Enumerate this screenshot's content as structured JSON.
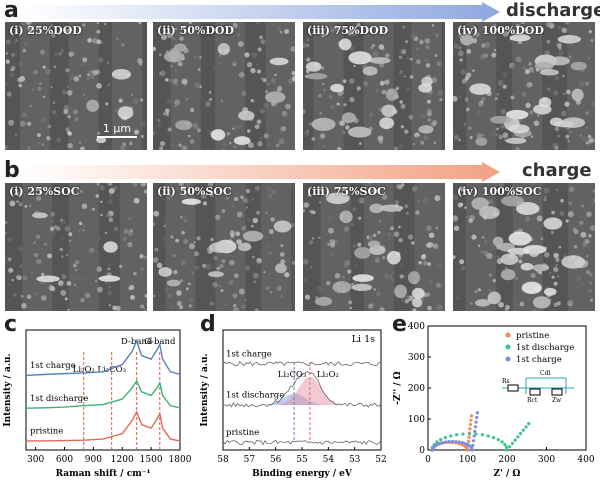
{
  "panel_a": {
    "letter": "a",
    "arrow_label": "discharge",
    "arrow_color": "#8fa7e0",
    "images": [
      {
        "label": "(i) 25%DOD"
      },
      {
        "label": "(ii) 50%DOD"
      },
      {
        "label": "(iii) 75%DOD"
      },
      {
        "label": "(iv) 100%DOD"
      }
    ],
    "scale_bar": "1 μm"
  },
  "panel_b": {
    "letter": "b",
    "arrow_label": "charge",
    "arrow_color": "#f2a183",
    "images": [
      {
        "label": "(i) 25%SOC"
      },
      {
        "label": "(ii) 50%SOC"
      },
      {
        "label": "(iii) 75%SOC"
      },
      {
        "label": "(iv) 100%SOC"
      }
    ]
  },
  "chart_data": [
    {
      "id": "c",
      "type": "line",
      "panel_letter": "c",
      "xlabel": "Raman shift / cm⁻¹",
      "ylabel": "Intensity / a.u.",
      "xlim": [
        200,
        1800
      ],
      "xticks": [
        300,
        600,
        900,
        1200,
        1500,
        1800
      ],
      "band_lines": [
        {
          "x": 800,
          "label": "Li₂O₂"
        },
        {
          "x": 1090,
          "label": "Li₂CO₃"
        },
        {
          "x": 1350,
          "label": "D-band"
        },
        {
          "x": 1590,
          "label": "G-band"
        }
      ],
      "series": [
        {
          "name": "1st charge",
          "color": "#5b7fc4",
          "offset": 2.0,
          "x": [
            200,
            400,
            600,
            800,
            1000,
            1200,
            1300,
            1350,
            1400,
            1500,
            1560,
            1590,
            1620,
            1700,
            1800
          ],
          "y": [
            0.05,
            0.08,
            0.1,
            0.12,
            0.15,
            0.35,
            0.7,
            1.0,
            0.6,
            0.5,
            0.75,
            0.9,
            0.5,
            0.15,
            0.08
          ]
        },
        {
          "name": "1st discharge",
          "color": "#3fb07a",
          "offset": 1.1,
          "x": [
            200,
            400,
            600,
            800,
            1000,
            1200,
            1300,
            1350,
            1400,
            1500,
            1560,
            1590,
            1620,
            1700,
            1800
          ],
          "y": [
            0.05,
            0.06,
            0.08,
            0.12,
            0.15,
            0.3,
            0.6,
            0.8,
            0.5,
            0.4,
            0.6,
            0.75,
            0.4,
            0.12,
            0.06
          ]
        },
        {
          "name": "pristine",
          "color": "#e06a5a",
          "offset": 0.2,
          "x": [
            200,
            400,
            600,
            800,
            1000,
            1200,
            1300,
            1350,
            1400,
            1500,
            1560,
            1590,
            1620,
            1700,
            1800
          ],
          "y": [
            0.05,
            0.05,
            0.06,
            0.07,
            0.1,
            0.25,
            0.6,
            0.85,
            0.5,
            0.4,
            0.65,
            0.8,
            0.4,
            0.1,
            0.05
          ]
        }
      ]
    },
    {
      "id": "d",
      "type": "line",
      "panel_letter": "d",
      "title": "Li 1s",
      "xlabel": "Binding energy / eV",
      "ylabel": "Intensity / a.u.",
      "xlim": [
        58,
        52
      ],
      "xticks": [
        58,
        57,
        56,
        55,
        54,
        53,
        52
      ],
      "ref_lines": [
        {
          "x": 55.3,
          "label": "Li₂CO₃",
          "color": "#5b7fc4"
        },
        {
          "x": 54.7,
          "label": "Li₂O₂",
          "color": "#e06a5a"
        }
      ],
      "traces": [
        {
          "name": "1st charge",
          "offset": 2.3
        },
        {
          "name": "1st discharge",
          "offset": 1.2
        },
        {
          "name": "pristine",
          "offset": 0.2
        }
      ],
      "fit_peaks": [
        {
          "center": 55.3,
          "height": 0.3,
          "color": "#6f8fd8"
        },
        {
          "center": 54.7,
          "height": 0.75,
          "color": "#e58aa0"
        }
      ]
    },
    {
      "id": "e",
      "type": "scatter",
      "panel_letter": "e",
      "xlabel": "Z' / Ω",
      "ylabel": "-Z'' / Ω",
      "xlim": [
        0,
        400
      ],
      "ylim": [
        0,
        400
      ],
      "xticks": [
        0,
        100,
        200,
        300,
        400
      ],
      "yticks": [
        0,
        100,
        200,
        300,
        400
      ],
      "series": [
        {
          "name": "pristine",
          "color": "#f08a5d"
        },
        {
          "name": "1st discharge",
          "color": "#3fc28a"
        },
        {
          "name": "1st charge",
          "color": "#7b8fe0"
        }
      ],
      "circuit_labels": [
        "Rs",
        "Rct",
        "Cdl",
        "Zw"
      ]
    }
  ]
}
